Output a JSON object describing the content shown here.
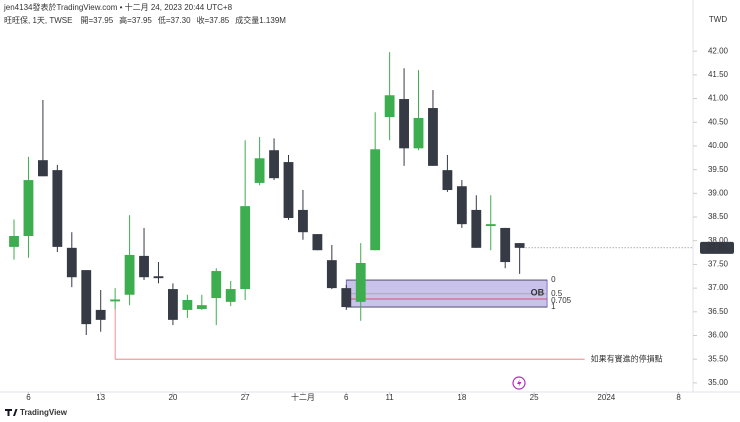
{
  "chart_data": {
    "type": "candlestick",
    "header": "jen4134發表於TradingView.com • 十二月 24, 2023 20:44 UTC+8",
    "symbol": "旺旺保, 1天, TWSE",
    "legend_fields": [
      "開=37.95",
      "高=37.95",
      "低=37.30",
      "收=37.85",
      "成交量1.139M"
    ],
    "currency": "TWD",
    "brand": "TradingView",
    "up_color": "#3dae4f",
    "down_color": "#363a45",
    "open": [
      37.87,
      38.1,
      39.7,
      39.49,
      37.85,
      37.38,
      36.54,
      36.72,
      36.86,
      37.68,
      37.25,
      36.98,
      36.54,
      36.56,
      36.79,
      36.71,
      36.98,
      39.22,
      39.91,
      39.66,
      38.65,
      38.14,
      37.59,
      37.0,
      36.71,
      37.8,
      40.61,
      40.99,
      39.95,
      40.8,
      39.49,
      39.15,
      38.65,
      38.31,
      38.27,
      37.95
    ],
    "high": [
      38.45,
      39.77,
      40.97,
      39.6,
      38.18,
      37.38,
      36.96,
      37.0,
      38.54,
      38.27,
      37.55,
      37.1,
      36.86,
      36.86,
      37.42,
      37.15,
      40.12,
      40.19,
      40.16,
      39.81,
      39.07,
      38.14,
      37.91,
      37.07,
      37.95,
      40.71,
      41.98,
      41.64,
      41.6,
      41.18,
      39.81,
      39.28,
      38.96,
      38.96,
      38.27,
      37.95
    ],
    "low": [
      37.6,
      37.64,
      39.36,
      37.76,
      37.02,
      36.01,
      36.08,
      36.55,
      36.64,
      37.17,
      37.1,
      36.22,
      36.37,
      36.54,
      36.22,
      36.62,
      36.75,
      39.17,
      39.28,
      38.44,
      38.02,
      37.8,
      36.98,
      36.54,
      36.31,
      37.8,
      40.12,
      39.58,
      39.91,
      39.58,
      39.03,
      38.27,
      37.85,
      37.8,
      37.42,
      37.3
    ],
    "close": [
      38.1,
      39.28,
      39.36,
      37.87,
      37.23,
      36.24,
      36.33,
      36.76,
      37.7,
      37.23,
      37.21,
      36.33,
      36.75,
      36.64,
      37.36,
      36.98,
      38.73,
      39.74,
      39.32,
      38.48,
      38.18,
      37.8,
      37.0,
      36.6,
      37.53,
      39.93,
      41.07,
      39.95,
      40.59,
      39.58,
      39.07,
      38.35,
      37.85,
      38.35,
      37.55,
      37.85
    ],
    "xlim": [
      -0.97,
      47
    ],
    "xticks": [
      {
        "value": 1,
        "label": "6"
      },
      {
        "value": 6,
        "label": "13"
      },
      {
        "value": 11,
        "label": "20"
      },
      {
        "value": 16,
        "label": "27"
      },
      {
        "value": 20,
        "label": "十二月"
      },
      {
        "value": 23,
        "label": "6"
      },
      {
        "value": 26,
        "label": "11"
      },
      {
        "value": 31,
        "label": "18"
      },
      {
        "value": 36,
        "label": "25"
      },
      {
        "value": 41,
        "label": "2024"
      },
      {
        "value": 46,
        "label": "8"
      }
    ],
    "ylim": [
      34.85,
      43.08
    ],
    "yticks": [
      {
        "value": 35,
        "label": "35.00"
      },
      {
        "value": 35.5,
        "label": "35.50"
      },
      {
        "value": 36,
        "label": "36.00"
      },
      {
        "value": 36.5,
        "label": "36.50"
      },
      {
        "value": 37,
        "label": "37.00"
      },
      {
        "value": 37.5,
        "label": "37.50"
      },
      {
        "value": 38,
        "label": "38.00"
      },
      {
        "value": 38.5,
        "label": "38.50"
      },
      {
        "value": 39,
        "label": "39.00"
      },
      {
        "value": 39.5,
        "label": "39.50"
      },
      {
        "value": 40,
        "label": "40.00"
      },
      {
        "value": 40.5,
        "label": "40.50"
      },
      {
        "value": 41,
        "label": "41.00"
      },
      {
        "value": 41.5,
        "label": "41.50"
      },
      {
        "value": 42,
        "label": "42.00"
      }
    ],
    "last_price": {
      "value": 37.85,
      "label": "37.85"
    },
    "zone": {
      "label": "OB",
      "start": 23,
      "end": 36.9,
      "top": 37.17,
      "bottom": 36.6,
      "color": "#9c8fd8",
      "levels": [
        {
          "value": 37.17,
          "label": "0",
          "color": "#333"
        },
        {
          "value": 36.88,
          "label": "0.5",
          "color": "#999"
        },
        {
          "value": 36.77,
          "label": "0.705",
          "color": "#d0324a"
        },
        {
          "value": 36.6,
          "label": "1",
          "color": "#333"
        }
      ]
    },
    "stop_line": {
      "value": 35.5,
      "start": 7,
      "end": 39.5,
      "label": "如果有實進的停損點",
      "color": "#f07070"
    }
  }
}
